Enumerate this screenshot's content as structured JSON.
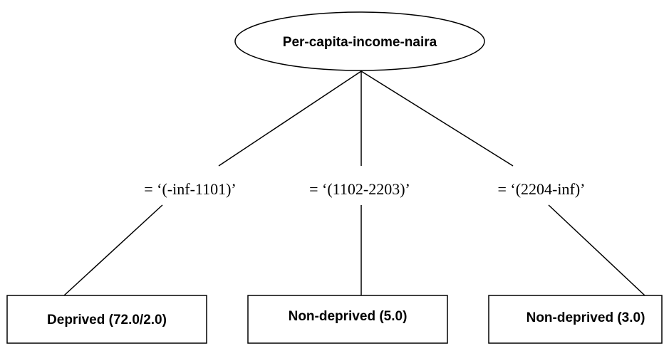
{
  "root": {
    "label": "Per-capita-income-naira"
  },
  "edges": [
    {
      "label": "= ‘(-inf-1101)’"
    },
    {
      "label": "= ‘(1102-2203)’"
    },
    {
      "label": "= ‘(2204-inf)’"
    }
  ],
  "leaves": [
    {
      "label": "Deprived (72.0/2.0)"
    },
    {
      "label": "Non-deprived (5.0)"
    },
    {
      "label": "Non-deprived (3.0)"
    }
  ]
}
